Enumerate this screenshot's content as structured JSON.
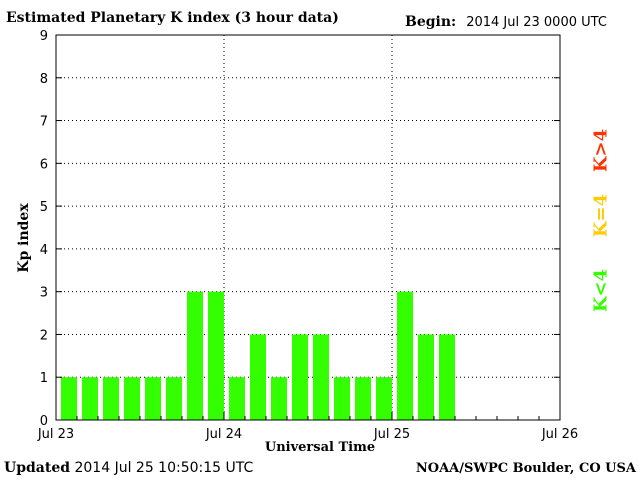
{
  "header": {
    "title": "Estimated Planetary K index (3 hour data)",
    "begin_label": "Begin:",
    "begin_value": "2014 Jul 23 0000 UTC"
  },
  "footer": {
    "updated_label": "Updated",
    "updated_value": "2014 Jul 25 10:50:15 UTC",
    "org": "NOAA/SWPC Boulder, CO USA"
  },
  "legend": {
    "high": {
      "label": "K>4",
      "color": "#ff3300"
    },
    "equal": {
      "label": "K=4",
      "color": "#ffcc00"
    },
    "low": {
      "label": "K<4",
      "color": "#33ff00"
    }
  },
  "chart_data": {
    "type": "bar",
    "xlabel": "Universal Time",
    "ylabel": "Kp index",
    "ylim": [
      0,
      9
    ],
    "y_ticks": [
      0,
      1,
      2,
      3,
      4,
      5,
      6,
      7,
      8,
      9
    ],
    "x_ticks": [
      "Jul 23",
      "Jul 24",
      "Jul 25",
      "Jul 26"
    ],
    "grid": "dotted",
    "bar_color": "#33ff00",
    "values": [
      1,
      1,
      1,
      1,
      1,
      1,
      3,
      3,
      1,
      2,
      1,
      2,
      2,
      1,
      1,
      1,
      3,
      2,
      2
    ]
  }
}
